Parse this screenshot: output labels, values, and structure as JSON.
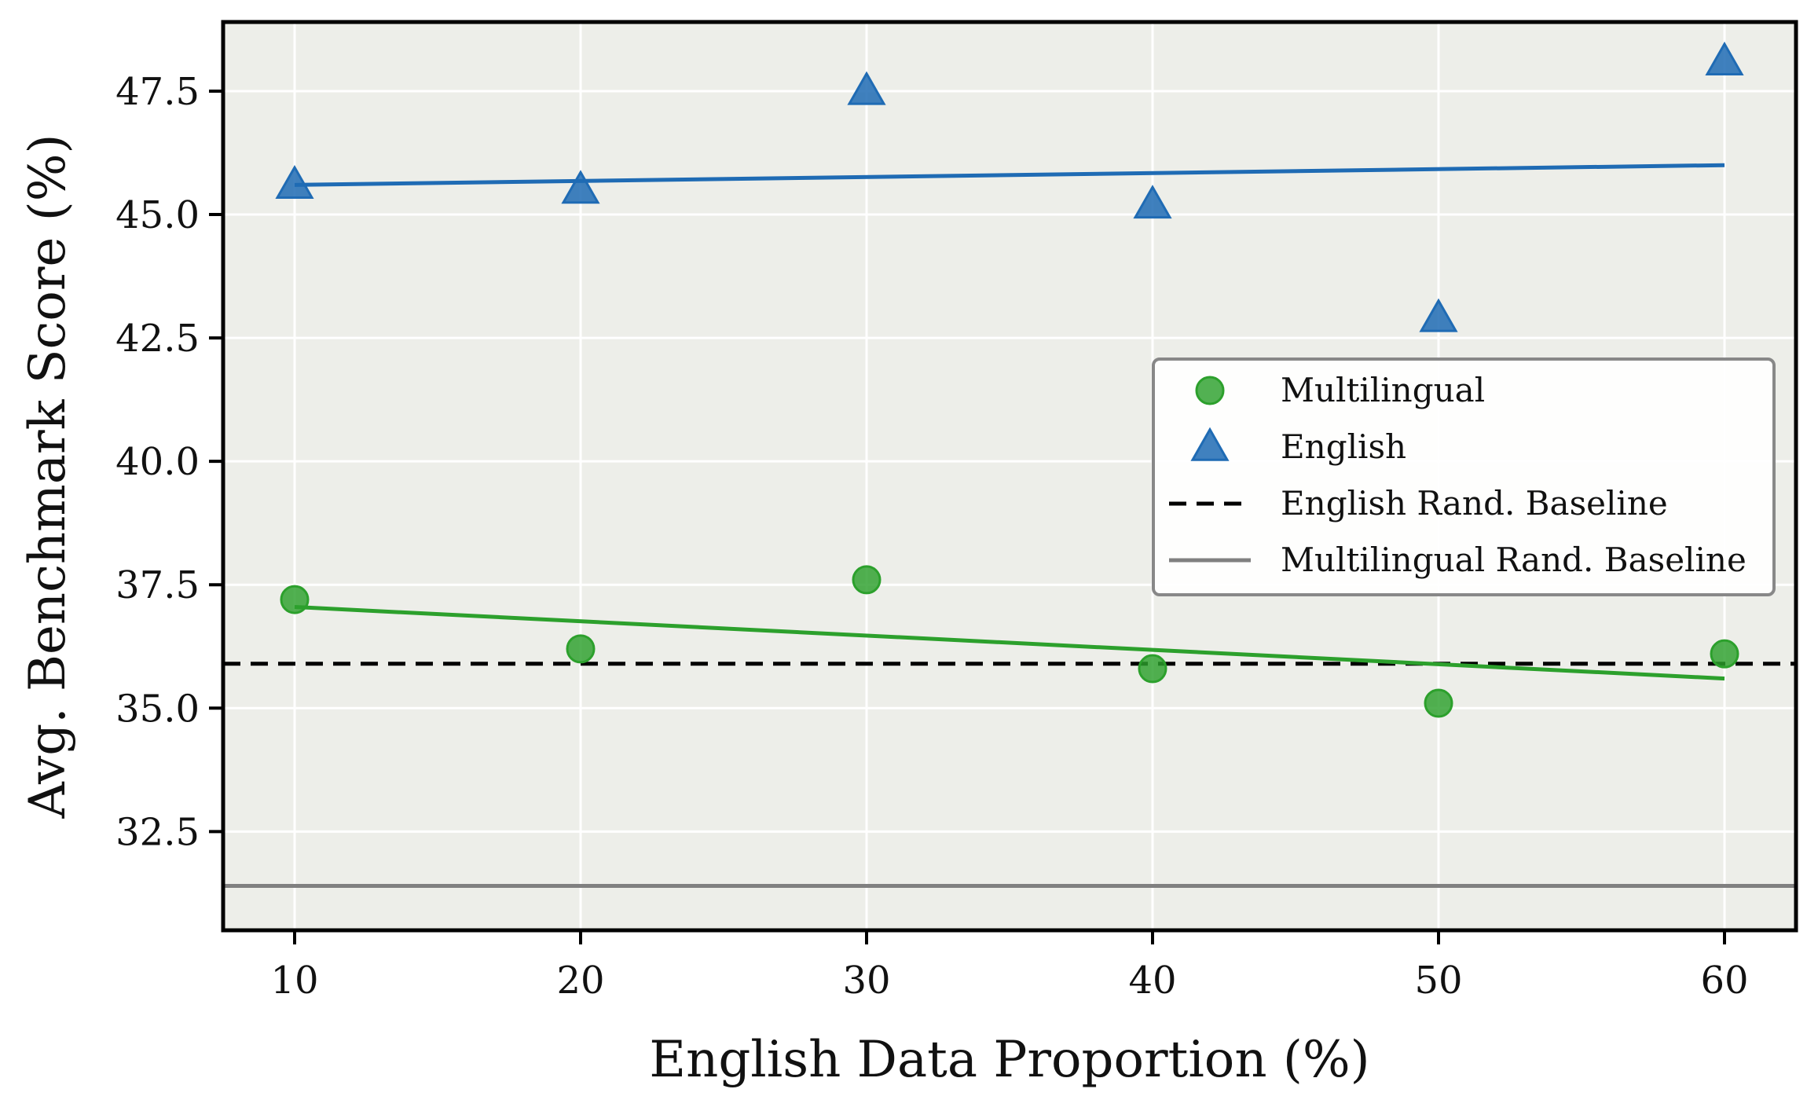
{
  "chart_data": {
    "type": "scatter",
    "xlabel": "English Data Proportion (%)",
    "ylabel": "Avg. Benchmark Score (%)",
    "xlim": [
      7.5,
      62.5
    ],
    "ylim": [
      30.5,
      48.9
    ],
    "xticks": [
      10,
      20,
      30,
      40,
      50,
      60
    ],
    "xtick_labels": [
      "10",
      "20",
      "30",
      "40",
      "50",
      "60"
    ],
    "yticks": [
      32.5,
      35.0,
      37.5,
      40.0,
      42.5,
      45.0,
      47.5
    ],
    "ytick_labels": [
      "32.5",
      "35.0",
      "37.5",
      "40.0",
      "42.5",
      "45.0",
      "47.5"
    ],
    "grid": true,
    "legend_position": "right",
    "colors": {
      "plot_background": "#edeee9",
      "grid": "#ffffff",
      "multilingual": "#2ca02c",
      "english": "#1f6bb4",
      "english_baseline": "#000000",
      "multilingual_baseline": "#808080"
    },
    "series": [
      {
        "name": "Multilingual",
        "kind": "scatter",
        "marker": "circle",
        "x": [
          10,
          20,
          30,
          40,
          50,
          60
        ],
        "y": [
          37.2,
          36.2,
          37.6,
          35.8,
          35.1,
          36.1
        ],
        "trend": {
          "x": [
            10,
            60
          ],
          "y": [
            37.05,
            35.6
          ]
        }
      },
      {
        "name": "English",
        "kind": "scatter",
        "marker": "triangle",
        "x": [
          10,
          20,
          30,
          40,
          50,
          60
        ],
        "y": [
          45.6,
          45.5,
          47.5,
          45.2,
          42.9,
          48.1
        ],
        "trend": {
          "x": [
            10,
            60
          ],
          "y": [
            45.6,
            46.0
          ]
        }
      },
      {
        "name": "English Rand. Baseline",
        "kind": "hline",
        "style": "dashed",
        "y": 35.9
      },
      {
        "name": "Multilingual Rand. Baseline",
        "kind": "hline",
        "style": "solid",
        "y": 31.4
      }
    ]
  }
}
